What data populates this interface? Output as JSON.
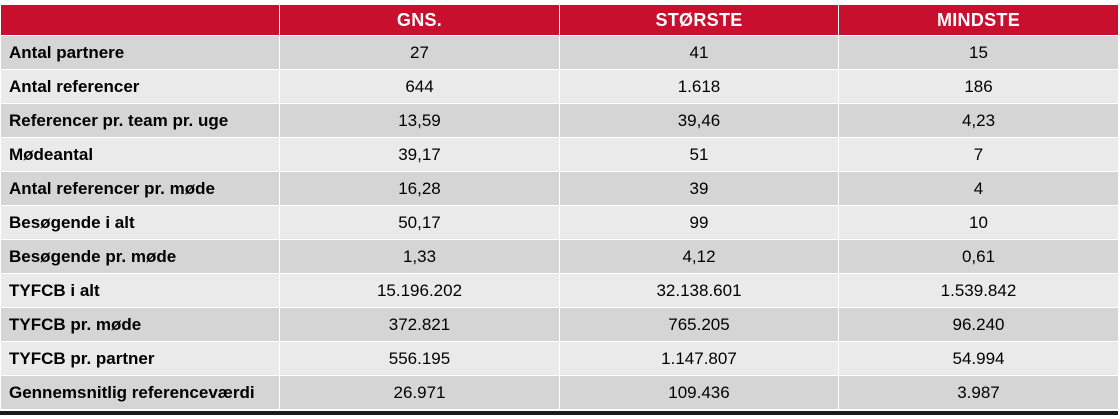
{
  "table": {
    "header": {
      "corner": "",
      "columns": [
        "GNS.",
        "STØRSTE",
        "MINDSTE"
      ]
    },
    "rows": [
      {
        "label": "Antal partnere",
        "values": [
          "27",
          "41",
          "15"
        ]
      },
      {
        "label": "Antal referencer",
        "values": [
          "644",
          "1.618",
          "186"
        ]
      },
      {
        "label": "Referencer pr. team pr. uge",
        "values": [
          "13,59",
          "39,46",
          "4,23"
        ]
      },
      {
        "label": "Mødeantal",
        "values": [
          "39,17",
          "51",
          "7"
        ]
      },
      {
        "label": "Antal referencer pr. møde",
        "values": [
          "16,28",
          "39",
          "4"
        ]
      },
      {
        "label": "Besøgende i alt",
        "values": [
          "50,17",
          "99",
          "10"
        ]
      },
      {
        "label": "Besøgende pr. møde",
        "values": [
          "1,33",
          "4,12",
          "0,61"
        ]
      },
      {
        "label": "TYFCB i alt",
        "values": [
          "15.196.202",
          "32.138.601",
          "1.539.842"
        ]
      },
      {
        "label": "TYFCB pr. møde",
        "values": [
          "372.821",
          "765.205",
          "96.240"
        ]
      },
      {
        "label": "TYFCB pr. partner",
        "values": [
          "556.195",
          "1.147.807",
          "54.994"
        ]
      },
      {
        "label": "Gennemsnitlig referenceværdi",
        "values": [
          "26.971",
          "109.436",
          "3.987"
        ]
      }
    ]
  },
  "colors": {
    "header_bg": "#c8102e",
    "header_text": "#ffffff",
    "row_dark": "#d5d5d5",
    "row_light": "#eaeaea",
    "bottom_rule": "#1a1a1a"
  }
}
